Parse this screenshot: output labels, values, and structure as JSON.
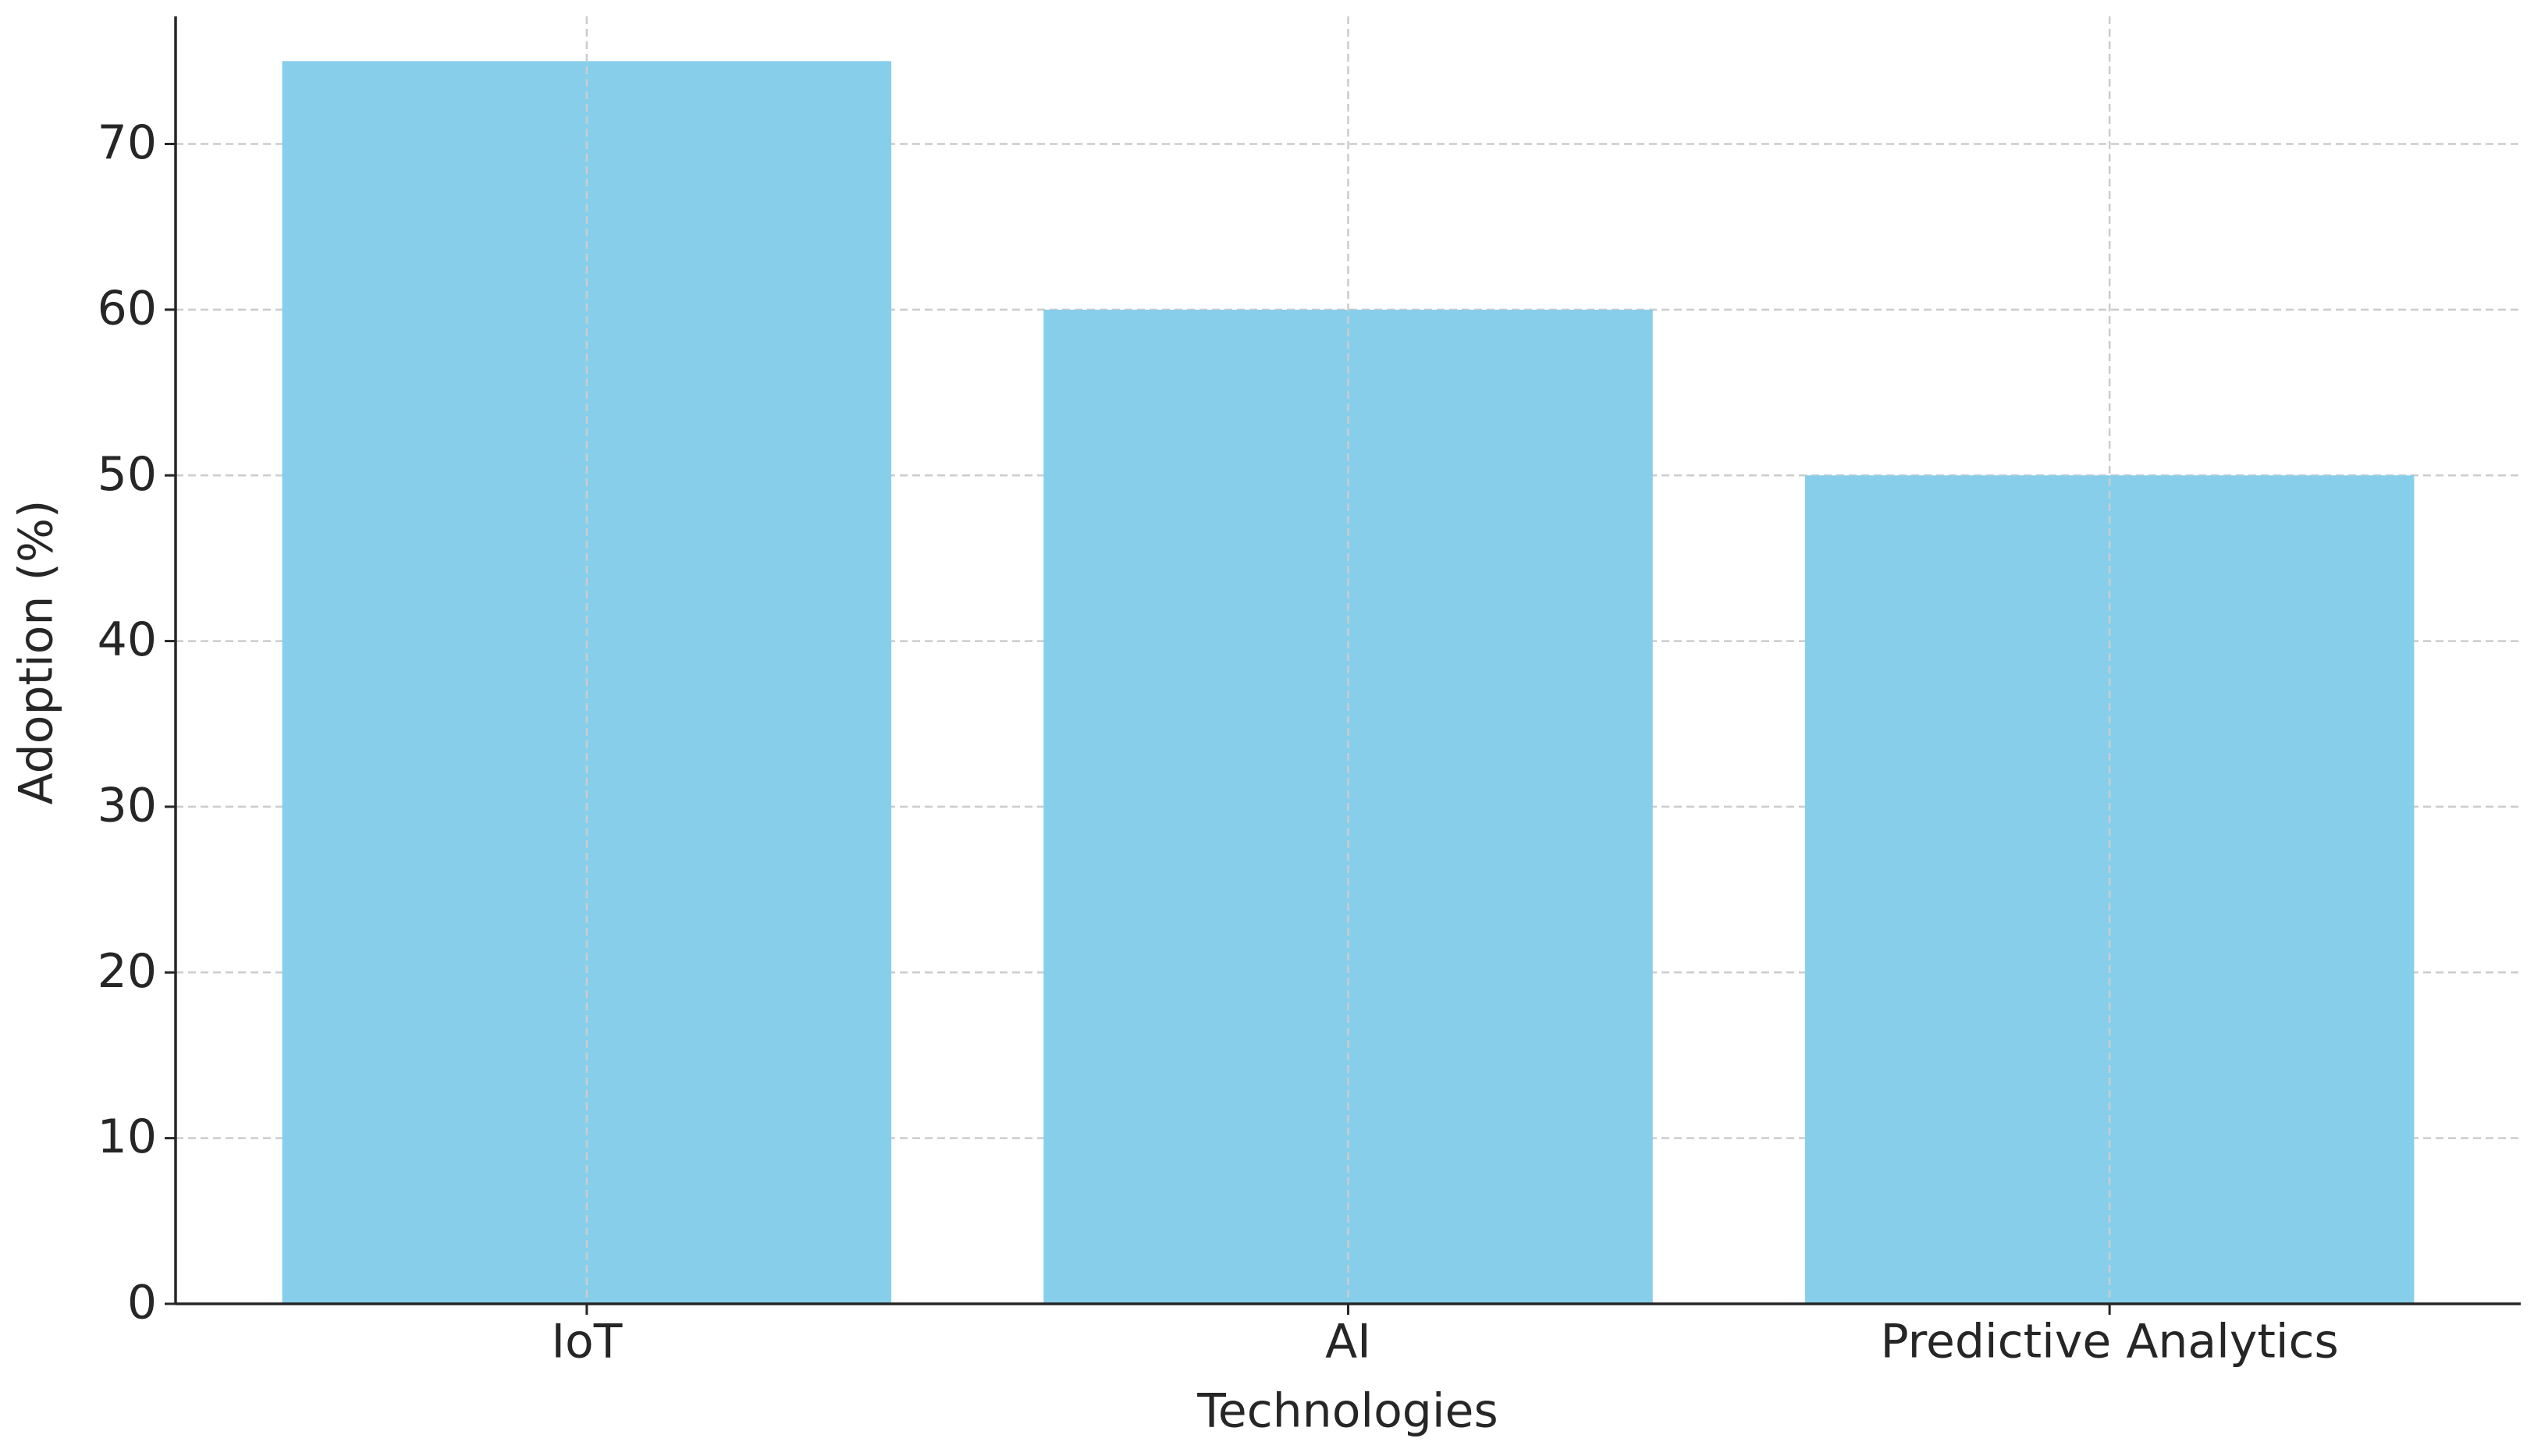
{
  "chart_data": {
    "type": "bar",
    "x_label": "Technologies",
    "y_label": "Adoption (%)",
    "categories": [
      "IoT",
      "AI",
      "Predictive Analytics"
    ],
    "values": [
      75,
      60,
      50
    ],
    "color": "#87ceeb",
    "ylim": [
      0,
      77.7
    ],
    "yticks": [
      0,
      10,
      20,
      30,
      40,
      50,
      60,
      70
    ],
    "grid": true
  }
}
